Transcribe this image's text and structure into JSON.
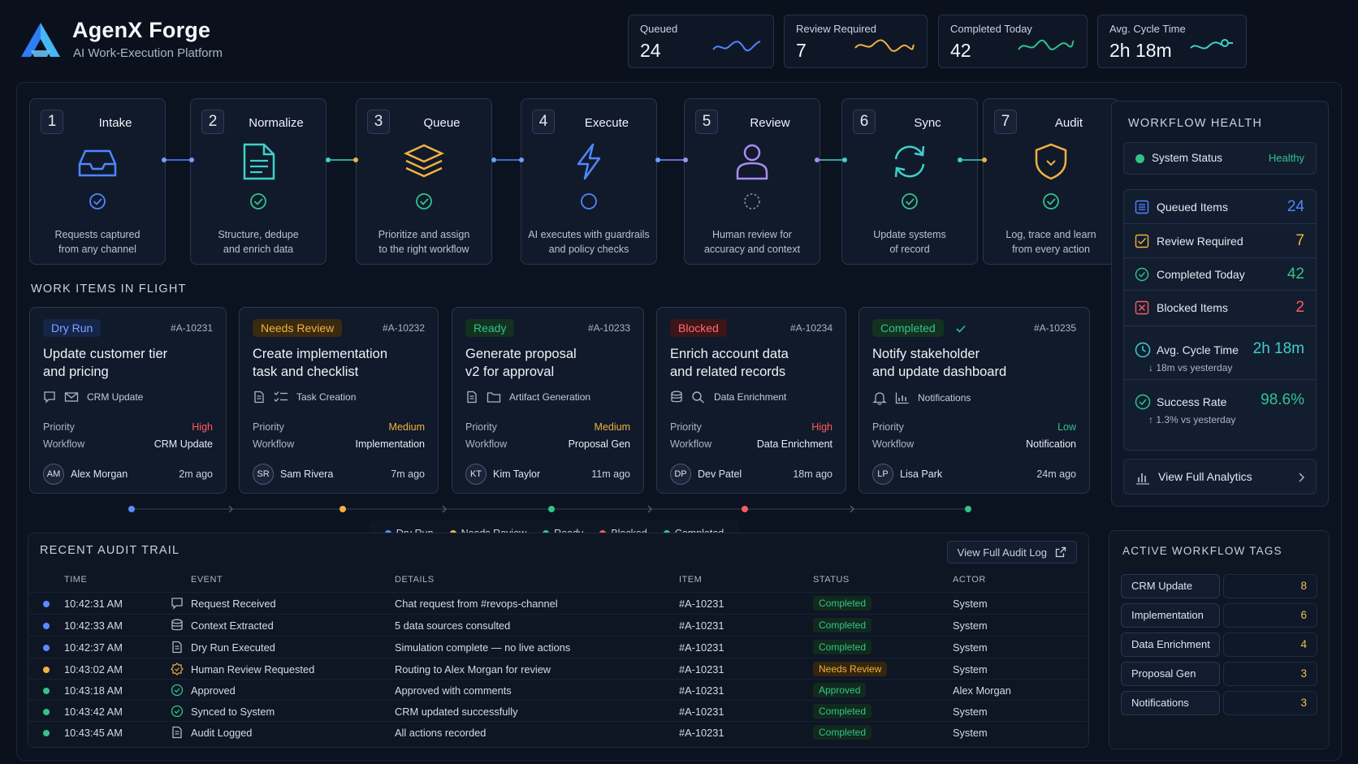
{
  "app": {
    "title": "AgenX Forge",
    "subtitle": "AI Work-Execution Platform"
  },
  "kpis": [
    {
      "label": "Queued",
      "value": "24",
      "color": "#4f86ff"
    },
    {
      "label": "Review Required",
      "value": "7",
      "color": "#f2b13f"
    },
    {
      "label": "Completed Today",
      "value": "42",
      "color": "#32c38a"
    },
    {
      "label": "Avg. Cycle Time",
      "value": "2h 18m",
      "color": "#3ed0c9"
    }
  ],
  "stages": [
    {
      "num": "1",
      "name": "Intake",
      "desc1": "Requests captured",
      "desc2": "from any channel",
      "icon": "inbox-icon",
      "color": "#4f86ff",
      "state": "done"
    },
    {
      "num": "2",
      "name": "Normalize",
      "desc1": "Structure, dedupe",
      "desc2": "and enrich data",
      "icon": "document-icon",
      "color": "#3ed0c9",
      "state": "done"
    },
    {
      "num": "3",
      "name": "Queue",
      "desc1": "Prioritize and assign",
      "desc2": "to the right workflow",
      "icon": "layers-icon",
      "color": "#f2b13f",
      "state": "done"
    },
    {
      "num": "4",
      "name": "Execute",
      "desc1": "AI executes with guardrails",
      "desc2": "and policy checks",
      "icon": "lightning-icon",
      "color": "#4f86ff",
      "state": "active"
    },
    {
      "num": "5",
      "name": "Review",
      "desc1": "Human review for",
      "desc2": "accuracy and context",
      "icon": "person-icon",
      "color": "#a98cf0",
      "state": "pending"
    },
    {
      "num": "6",
      "name": "Sync",
      "desc1": "Update systems",
      "desc2": "of record",
      "icon": "sync-icon",
      "color": "#3ed0c9",
      "state": "done"
    },
    {
      "num": "7",
      "name": "Audit",
      "desc1": "Log, trace and learn",
      "desc2": "from every action",
      "icon": "shield-icon",
      "color": "#f2b13f",
      "state": "done"
    }
  ],
  "work_title": "WORK ITEMS IN FLIGHT",
  "work_items": [
    {
      "status": "Dry Run",
      "status_color": "#5b8cff",
      "id": "#A-10231",
      "title1": "Update customer tier",
      "title2": "and pricing",
      "meta": "CRM Update",
      "priority_label": "Priority",
      "priority": "High",
      "priority_color": "#ff5a5f",
      "workflow_label": "Workflow",
      "workflow": "CRM Update",
      "initials": "AM",
      "owner": "Alex Morgan",
      "ago": "2m ago"
    },
    {
      "status": "Needs Review",
      "status_color": "#f2b13f",
      "id": "#A-10232",
      "title1": "Create implementation",
      "title2": "task and checklist",
      "meta": "Task Creation",
      "priority_label": "Priority",
      "priority": "Medium",
      "priority_color": "#f2b13f",
      "workflow_label": "Workflow",
      "workflow": "Implementation",
      "initials": "SR",
      "owner": "Sam Rivera",
      "ago": "7m ago"
    },
    {
      "status": "Ready",
      "status_color": "#32c38a",
      "id": "#A-10233",
      "title1": "Generate proposal",
      "title2": "v2 for approval",
      "meta": "Artifact Generation",
      "priority_label": "Priority",
      "priority": "Medium",
      "priority_color": "#f2b13f",
      "workflow_label": "Workflow",
      "workflow": "Proposal Gen",
      "initials": "KT",
      "owner": "Kim Taylor",
      "ago": "11m ago"
    },
    {
      "status": "Blocked",
      "status_color": "#ff5a5f",
      "id": "#A-10234",
      "title1": "Enrich account data",
      "title2": "and related records",
      "meta": "Data Enrichment",
      "priority_label": "Priority",
      "priority": "High",
      "priority_color": "#ff5a5f",
      "workflow_label": "Workflow",
      "workflow": "Data Enrichment",
      "initials": "DP",
      "owner": "Dev Patel",
      "ago": "18m ago"
    },
    {
      "status": "Completed",
      "status_color": "#32c38a",
      "id": "#A-10235",
      "title1": "Notify stakeholder",
      "title2": "and update dashboard",
      "meta": "Notifications",
      "priority_label": "Priority",
      "priority": "Low",
      "priority_color": "#32c38a",
      "workflow_label": "Workflow",
      "workflow": "Notification",
      "initials": "LP",
      "owner": "Lisa Park",
      "ago": "24m ago"
    }
  ],
  "legend": [
    {
      "label": "Dry Run",
      "color": "#5b8cff"
    },
    {
      "label": "Needs Review",
      "color": "#f2b13f"
    },
    {
      "label": "Ready",
      "color": "#32c38a"
    },
    {
      "label": "Blocked",
      "color": "#ff5a5f"
    },
    {
      "label": "Completed",
      "color": "#32c38a"
    }
  ],
  "audit": {
    "title": "RECENT AUDIT TRAIL",
    "button": "View Full Audit Log",
    "columns": [
      "TIME",
      "EVENT",
      "DETAILS",
      "ITEM",
      "STATUS",
      "ACTOR"
    ],
    "rows": [
      {
        "time": "10:42:31 AM",
        "event": "Request Received",
        "details": "Chat request from #revops-channel",
        "item": "#A-10231",
        "status": "Completed",
        "actor": "System",
        "dot": "#5b8cff",
        "status_color": "#32c38a",
        "icon": "chat-icon"
      },
      {
        "time": "10:42:33 AM",
        "event": "Context Extracted",
        "details": "5 data sources consulted",
        "item": "#A-10231",
        "status": "Completed",
        "actor": "System",
        "dot": "#5b8cff",
        "status_color": "#32c38a",
        "icon": "database-icon"
      },
      {
        "time": "10:42:37 AM",
        "event": "Dry Run Executed",
        "details": "Simulation complete — no live actions",
        "item": "#A-10231",
        "status": "Completed",
        "actor": "System",
        "dot": "#5b8cff",
        "status_color": "#32c38a",
        "icon": "document-icon"
      },
      {
        "time": "10:43:02 AM",
        "event": "Human Review Requested",
        "details": "Routing to Alex Morgan for review",
        "item": "#A-10231",
        "status": "Needs Review",
        "actor": "System",
        "dot": "#f2b13f",
        "status_color": "#f2b13f",
        "icon": "badge-icon"
      },
      {
        "time": "10:43:18 AM",
        "event": "Approved",
        "details": "Approved with comments",
        "item": "#A-10231",
        "status": "Approved",
        "actor": "Alex Morgan",
        "dot": "#32c38a",
        "status_color": "#32c38a",
        "icon": "check-icon"
      },
      {
        "time": "10:43:42 AM",
        "event": "Synced to System",
        "details": "CRM updated successfully",
        "item": "#A-10231",
        "status": "Completed",
        "actor": "System",
        "dot": "#32c38a",
        "status_color": "#32c38a",
        "icon": "check-icon"
      },
      {
        "time": "10:43:45 AM",
        "event": "Audit Logged",
        "details": "All actions recorded",
        "item": "#A-10231",
        "status": "Completed",
        "actor": "System",
        "dot": "#32c38a",
        "status_color": "#32c38a",
        "icon": "document-icon"
      }
    ]
  },
  "health": {
    "title": "WORKFLOW HEALTH",
    "status_label": "System Status",
    "status_value": "Healthy",
    "rows": [
      {
        "label": "Queued Items",
        "value": "24",
        "color": "#4f86ff",
        "icon": "list-icon"
      },
      {
        "label": "Review Required",
        "value": "7",
        "color": "#f2b13f",
        "icon": "review-icon"
      },
      {
        "label": "Completed Today",
        "value": "42",
        "color": "#32c38a",
        "icon": "check-circle-icon"
      },
      {
        "label": "Blocked Items",
        "value": "2",
        "color": "#ff5a5f",
        "icon": "x-box-icon"
      }
    ],
    "cycle_label": "Avg. Cycle Time",
    "cycle_value": "2h 18m",
    "cycle_delta": "↓ 18m vs yesterday",
    "success_label": "Success Rate",
    "success_value": "98.6%",
    "success_delta": "↑ 1.3% vs yesterday",
    "analytics": "View Full Analytics"
  },
  "tags": {
    "title": "ACTIVE WORKFLOW TAGS",
    "items": [
      {
        "name": "CRM Update",
        "count": "8"
      },
      {
        "name": "Implementation",
        "count": "6"
      },
      {
        "name": "Data Enrichment",
        "count": "4"
      },
      {
        "name": "Proposal Gen",
        "count": "3"
      },
      {
        "name": "Notifications",
        "count": "3"
      }
    ]
  }
}
